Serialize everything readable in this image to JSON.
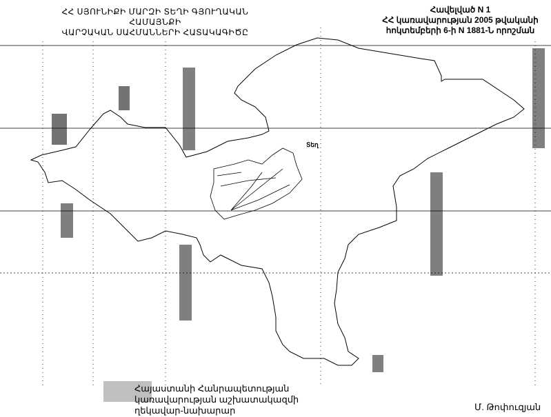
{
  "header": {
    "title_line1": "ՀՀ ՍՅՈՒՆԻՔԻ ՄԱՐԶԻ ՏԵՂԻ ԳՅՈՒՂԱԿԱՆ ՀԱՄԱՅՆՔԻ",
    "title_line2": "ՎԱՐՉԱԿԱՆ ՍԱՀՄԱՆՆԵՐԻ ՀԱՏԱԿԱԳԻԾԸ"
  },
  "annex": {
    "line1": "Հավելված N 1",
    "line2": "ՀՀ կառավարության 2005 թվականի",
    "line3": "հոկտեմբերի 6-ի N 1881-Ն որոշման"
  },
  "map": {
    "settlement_label": "Տեղ",
    "boundary_color": "#000000",
    "grid_color": "#000000"
  },
  "footer": {
    "signer_title_line1": "Հայաստանի Հանրապետության",
    "signer_title_line2": "կառավարության աշխատակազմի",
    "signer_title_line3": "ղեկավար-նախարար",
    "signer_name": "Մ. Թոփուզյան"
  }
}
